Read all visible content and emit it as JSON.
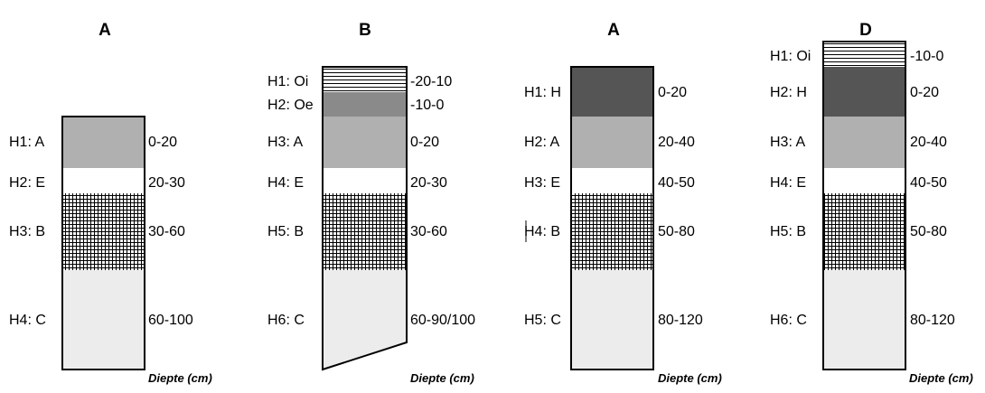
{
  "colors": {
    "dark": "#555555",
    "medium": "#8a8a8a",
    "light": "#b0b0b0",
    "pale": "#ececec",
    "white": "#ffffff",
    "grid": "#000000"
  },
  "profiles": [
    {
      "title": "A",
      "unit_label": "Diepte (cm)",
      "horizons": [
        {
          "label": "H1: A",
          "depth": "0-20",
          "fill": "light"
        },
        {
          "label": "H2: E",
          "depth": "20-30",
          "fill": "white"
        },
        {
          "label": "H3: B",
          "depth": "30-60",
          "fill": "grid"
        },
        {
          "label": "H4: C",
          "depth": "60-100",
          "fill": "pale"
        }
      ]
    },
    {
      "title": "B",
      "unit_label": "Diepte (cm)",
      "horizons": [
        {
          "label": "H1: Oi",
          "depth": "-20-10",
          "fill": "hlines"
        },
        {
          "label": "H2: Oe",
          "depth": "-10-0",
          "fill": "medium"
        },
        {
          "label": "H3: A",
          "depth": "0-20",
          "fill": "light"
        },
        {
          "label": "H4: E",
          "depth": "20-30",
          "fill": "white"
        },
        {
          "label": "H5: B",
          "depth": "30-60",
          "fill": "grid"
        },
        {
          "label": "H6: C",
          "depth": "60-90/100",
          "fill": "pale"
        }
      ]
    },
    {
      "title": "A",
      "unit_label": "Diepte (cm)",
      "horizons": [
        {
          "label": "H1: H",
          "depth": "0-20",
          "fill": "dark"
        },
        {
          "label": "H2: A",
          "depth": "20-40",
          "fill": "light"
        },
        {
          "label": "H3: E",
          "depth": "40-50",
          "fill": "white"
        },
        {
          "label": "H4: B",
          "depth": "50-80",
          "fill": "grid"
        },
        {
          "label": "H5: C",
          "depth": "80-120",
          "fill": "pale"
        }
      ]
    },
    {
      "title": "D",
      "unit_label": "Diepte (cm)",
      "horizons": [
        {
          "label": "H1: Oi",
          "depth": "-10-0",
          "fill": "hlines"
        },
        {
          "label": "H2: H",
          "depth": "0-20",
          "fill": "dark"
        },
        {
          "label": "H3: A",
          "depth": "20-40",
          "fill": "light"
        },
        {
          "label": "H4: E",
          "depth": "40-50",
          "fill": "white"
        },
        {
          "label": "H5: B",
          "depth": "50-80",
          "fill": "grid"
        },
        {
          "label": "H6: C",
          "depth": "80-120",
          "fill": "pale"
        }
      ]
    }
  ]
}
